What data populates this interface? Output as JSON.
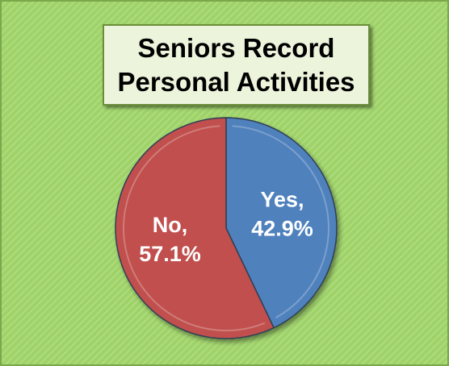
{
  "chart_data": {
    "type": "pie",
    "title": "Seniors Record Personal Activities",
    "categories": [
      "Yes,",
      "No,"
    ],
    "values": [
      42.9,
      57.1
    ],
    "value_labels": [
      "42.9%",
      "57.1%"
    ],
    "colors": [
      "#4f81bd",
      "#c0504d"
    ]
  }
}
